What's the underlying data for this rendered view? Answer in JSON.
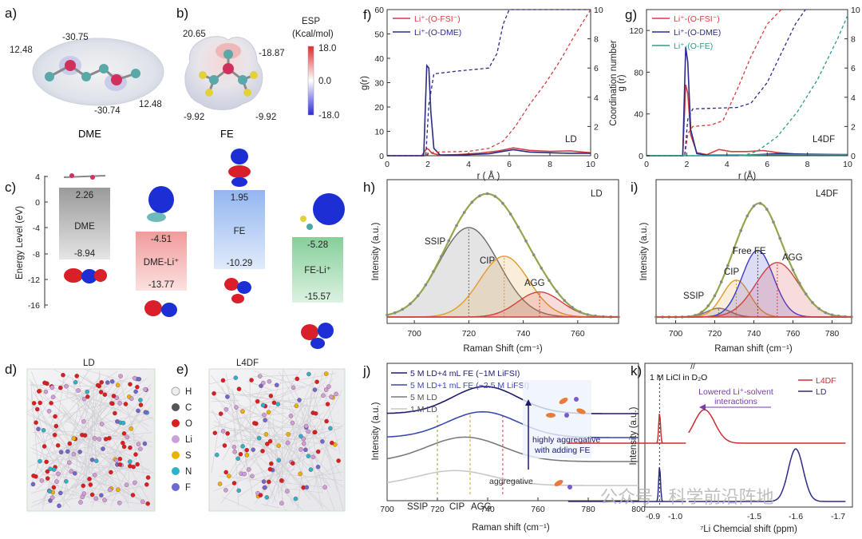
{
  "panels": {
    "a": {
      "label": "a)",
      "molecule": "DME",
      "esp_values": [
        "12.48",
        "-30.75",
        "-30.74",
        "12.48"
      ]
    },
    "b": {
      "label": "b)",
      "molecule": "FE",
      "esp_values": [
        "20.65",
        "-18.87",
        "-9.92",
        "-9.92"
      ],
      "colorbar": {
        "title_line1": "ESP",
        "title_line2": "(Kcal/mol)",
        "max": "18.0",
        "mid": "0.0",
        "min": "-18.0",
        "colors": {
          "max": "#e02a2a",
          "mid": "#ffffff",
          "min": "#2a2ad9"
        }
      }
    },
    "c": {
      "label": "c)",
      "ylabel": "Energy Level (eV)",
      "yticks": [
        "4",
        "0",
        "-4",
        "-8",
        "-12",
        "-16"
      ],
      "boxes": [
        {
          "name": "DME",
          "lumo": "2.26",
          "homo": "-8.94",
          "color": "#a3a3a3"
        },
        {
          "name": "DME-Li⁺",
          "lumo": "-4.51",
          "homo": "-13.77",
          "color": "#f19696"
        },
        {
          "name": "FE",
          "lumo": "1.95",
          "homo": "-10.29",
          "color": "#9fbdf0"
        },
        {
          "name": "FE-Li⁺",
          "lumo": "-5.28",
          "homo": "-15.57",
          "color": "#8fd3a0"
        }
      ]
    },
    "d": {
      "label": "d)",
      "title": "LD"
    },
    "e": {
      "label": "e)",
      "title": "L4DF",
      "legend": [
        {
          "symbol": "H",
          "color": "#eeeeee"
        },
        {
          "symbol": "C",
          "color": "#555555"
        },
        {
          "symbol": "O",
          "color": "#d91f1f"
        },
        {
          "symbol": "Li",
          "color": "#c9a0dc"
        },
        {
          "symbol": "S",
          "color": "#e8b400"
        },
        {
          "symbol": "N",
          "color": "#2bb3c9"
        },
        {
          "symbol": "F",
          "color": "#6a6ad0"
        }
      ]
    },
    "f": {
      "label": "f)",
      "tag": "LD"
    },
    "g": {
      "label": "g)",
      "tag": "L4DF"
    },
    "h": {
      "label": "h)",
      "tag": "LD"
    },
    "i": {
      "label": "i)",
      "tag": "L4DF"
    },
    "j": {
      "label": "j)",
      "arrow_text_line1": "highly aggregative",
      "arrow_text_line2": "with adding FE",
      "aggregative_text": "aggregative"
    },
    "k": {
      "label": "k)",
      "reference": "1 M LiCl in D₂O",
      "annotation_line1": "Lowered Li⁺-solvent",
      "annotation_line2": "interactions"
    }
  },
  "watermark": "公众号 · 科学前沿阵地",
  "chart_data": [
    {
      "id": "f",
      "type": "line",
      "xlabel": "r ( Å )",
      "ylabel": "g(r)",
      "y2label": "Coordination number",
      "xlim": [
        0,
        10
      ],
      "ylim": [
        0,
        60
      ],
      "y2lim": [
        0,
        10
      ],
      "xticks": [
        "0",
        "2",
        "4",
        "6",
        "8",
        "10"
      ],
      "yticks": [
        "0",
        "10",
        "20",
        "30",
        "40",
        "50",
        "60"
      ],
      "y2ticks": [
        "0",
        "2",
        "4",
        "6",
        "8",
        "10"
      ],
      "series": [
        {
          "name": "Li⁺-(O-FSI⁻)",
          "color": "#d43f3f",
          "axis": "left",
          "style": "solid",
          "x": [
            0,
            1.7,
            1.95,
            2.05,
            2.2,
            2.6,
            3.5,
            4.5,
            5.5,
            6.2,
            7,
            8,
            9,
            10
          ],
          "y": [
            0,
            0,
            3,
            2.5,
            1,
            0.2,
            0.5,
            1,
            2,
            3.2,
            2.2,
            1.8,
            2.0,
            1.2
          ]
        },
        {
          "name": "Li⁺-(O-DME)",
          "color": "#2b2b8a",
          "axis": "left",
          "style": "solid",
          "x": [
            0,
            1.8,
            1.95,
            2.05,
            2.15,
            2.3,
            2.6,
            3.5,
            5,
            6.2,
            7,
            8,
            9,
            10
          ],
          "y": [
            0,
            0,
            37,
            36,
            18,
            3,
            0.3,
            0.3,
            0.8,
            2.5,
            1.5,
            1.2,
            1.0,
            1.0
          ]
        },
        {
          "name": "Li⁺-(O-FSI⁻) CN",
          "color": "#d43f3f",
          "axis": "right",
          "style": "dashed",
          "x": [
            0,
            1.9,
            2.1,
            2.5,
            4,
            5,
            5.7,
            6.3,
            7,
            7.8,
            8.5,
            9.2,
            10
          ],
          "y": [
            0,
            0,
            0.2,
            0.25,
            0.3,
            0.5,
            1.0,
            2.0,
            3.5,
            5.0,
            6.5,
            8.2,
            10
          ]
        },
        {
          "name": "Li⁺-(O-DME) CN",
          "color": "#2b2b8a",
          "axis": "right",
          "style": "dashed",
          "x": [
            0,
            1.9,
            2.05,
            2.3,
            3.5,
            5.0,
            5.4,
            5.7,
            6.0,
            10
          ],
          "y": [
            0,
            0,
            3.5,
            5.6,
            5.8,
            6.0,
            7.0,
            9.0,
            10,
            10
          ]
        }
      ]
    },
    {
      "id": "g",
      "type": "line",
      "xlabel": "r (Å)",
      "ylabel": "g (r)",
      "y2label": "Coordination number",
      "xlim": [
        0,
        10
      ],
      "ylim": [
        0,
        140
      ],
      "y2lim": [
        0,
        10
      ],
      "xticks": [
        "0",
        "2",
        "4",
        "6",
        "8",
        "10"
      ],
      "yticks": [
        "0",
        "40",
        "80",
        "120"
      ],
      "y2ticks": [
        "0",
        "2",
        "4",
        "6",
        "8",
        "10"
      ],
      "series": [
        {
          "name": "Li⁺-(O-FSI⁻)",
          "color": "#d43f3f",
          "axis": "left",
          "style": "solid",
          "x": [
            0,
            1.8,
            1.95,
            2.05,
            2.2,
            2.5,
            3,
            3.6,
            4.2,
            5,
            5.8,
            6.5,
            7.5,
            8.5,
            10
          ],
          "y": [
            0,
            0,
            68,
            60,
            20,
            3,
            1,
            6,
            4,
            4,
            5,
            3,
            1.5,
            1,
            1
          ]
        },
        {
          "name": "Li⁺-(O-DME)",
          "color": "#2b2b8a",
          "axis": "left",
          "style": "solid",
          "x": [
            0,
            1.8,
            1.95,
            2.05,
            2.2,
            2.5,
            3,
            5,
            6.5,
            8,
            10
          ],
          "y": [
            0,
            0,
            104,
            90,
            25,
            2,
            0.5,
            0.5,
            2,
            1.5,
            1
          ]
        },
        {
          "name": "Li⁺-(O-FE)",
          "color": "#2a9d8a",
          "axis": "left",
          "style": "solid",
          "x": [
            0,
            4.5,
            5,
            6,
            8,
            10
          ],
          "y": [
            0,
            0,
            0.5,
            1,
            1,
            1
          ]
        },
        {
          "name": "Li⁺-(O-FSI⁻) CN",
          "color": "#d43f3f",
          "axis": "right",
          "style": "dashed",
          "x": [
            0,
            1.9,
            2.05,
            2.3,
            3.2,
            3.8,
            4.5,
            5.2,
            6.0,
            6.7
          ],
          "y": [
            0,
            0,
            1.5,
            2.0,
            2.1,
            2.4,
            4.5,
            6.8,
            9.0,
            10
          ]
        },
        {
          "name": "Li⁺-(O-DME) CN",
          "color": "#2b2b8a",
          "axis": "right",
          "style": "dashed",
          "x": [
            0,
            1.9,
            2.05,
            2.3,
            4.5,
            5.2,
            6,
            6.7,
            7.4,
            7.9
          ],
          "y": [
            0,
            0,
            2.5,
            3.2,
            3.3,
            3.6,
            5.0,
            7.0,
            9.0,
            10
          ]
        },
        {
          "name": "Li⁺-(O-FE) CN",
          "color": "#2a9d8a",
          "axis": "right",
          "style": "dashed",
          "x": [
            0,
            4.8,
            5.5,
            6.5,
            7.5,
            8.5,
            9.5,
            10
          ],
          "y": [
            0,
            0,
            0.3,
            1.3,
            3.0,
            5.2,
            8.0,
            9.6
          ]
        }
      ]
    },
    {
      "id": "h",
      "type": "area",
      "xlabel": "Raman Shift (cm⁻¹)",
      "ylabel": "Intensity (a.u.)",
      "xlim": [
        690,
        775
      ],
      "xticks": [
        "700",
        "720",
        "740",
        "760"
      ],
      "series": [
        {
          "name": "SSIP",
          "color": "#6b6b6b",
          "center": 720,
          "amplitude": 1.0,
          "width": 11
        },
        {
          "name": "CIP",
          "color": "#e39a2a",
          "center": 733,
          "amplitude": 0.68,
          "width": 9
        },
        {
          "name": "AGG",
          "color": "#d43f3f",
          "center": 746,
          "amplitude": 0.28,
          "width": 8
        }
      ],
      "envelope_color": "#8fa84a",
      "fit_color": "#8a8a8a"
    },
    {
      "id": "i",
      "type": "area",
      "xlabel": "Raman shift (cm⁻¹)",
      "ylabel": "Intensity (a.u.)",
      "xlim": [
        690,
        790
      ],
      "xticks": [
        "700",
        "720",
        "740",
        "760",
        "780"
      ],
      "series": [
        {
          "name": "SSIP",
          "color": "#6b6b6b",
          "center": 722,
          "amplitude": 0.1,
          "width": 6
        },
        {
          "name": "CIP",
          "color": "#e39a2a",
          "center": 731,
          "amplitude": 0.42,
          "width": 7
        },
        {
          "name": "Free FE",
          "color": "#3b3bd0",
          "center": 742,
          "amplitude": 0.76,
          "width": 8
        },
        {
          "name": "AGG",
          "color": "#d43f3f",
          "center": 752,
          "amplitude": 0.62,
          "width": 11
        }
      ],
      "envelope_color": "#8fa84a",
      "fit_color": "#8a8a8a"
    },
    {
      "id": "j",
      "type": "line",
      "xlabel": "Raman shift (cm⁻¹)",
      "ylabel": "Intensity (a.u.)",
      "xlim": [
        700,
        800
      ],
      "xticks": [
        "700",
        "720",
        "740",
        "760",
        "780",
        "800"
      ],
      "markers": [
        {
          "name": "SSIP",
          "x": 720,
          "color": "#9a9a3a"
        },
        {
          "name": "CIP",
          "x": 733,
          "color": "#c8a020"
        },
        {
          "name": "AGG",
          "x": 746,
          "color": "#d43f3f"
        }
      ],
      "series": [
        {
          "name": "5 M LD+4 mL FE (~1M LiFSI)",
          "color": "#1c1c6e",
          "offset": 3.0,
          "center": 739,
          "amplitude": 1.0,
          "width": 13
        },
        {
          "name": "5 M LD+1 mL FE (~2.5 M LiFSI)",
          "color": "#3a4ab0",
          "offset": 2.0,
          "center": 738,
          "amplitude": 0.95,
          "width": 14
        },
        {
          "name": "5 M LD",
          "color": "#7a7a7a",
          "offset": 1.0,
          "center": 731,
          "amplitude": 0.9,
          "width": 15
        },
        {
          "name": "1 M LD",
          "color": "#c8c8c8",
          "offset": 0.0,
          "center": 727,
          "amplitude": 0.55,
          "width": 15
        }
      ]
    },
    {
      "id": "k",
      "type": "line",
      "xlabel": "⁷Li Chemcial shift (ppm)",
      "ylabel": "Intensity (a.u.)",
      "xticks": [
        "-0.9",
        "-1.0",
        "-1.5",
        "-1.6",
        "-1.7"
      ],
      "series": [
        {
          "name": "L4DF",
          "color": "#c83030",
          "peaks_ppm": [
            -0.93,
            -1.38
          ]
        },
        {
          "name": "LD",
          "color": "#2b2b8a",
          "peaks_ppm": [
            -0.93,
            -1.6
          ]
        }
      ]
    }
  ]
}
